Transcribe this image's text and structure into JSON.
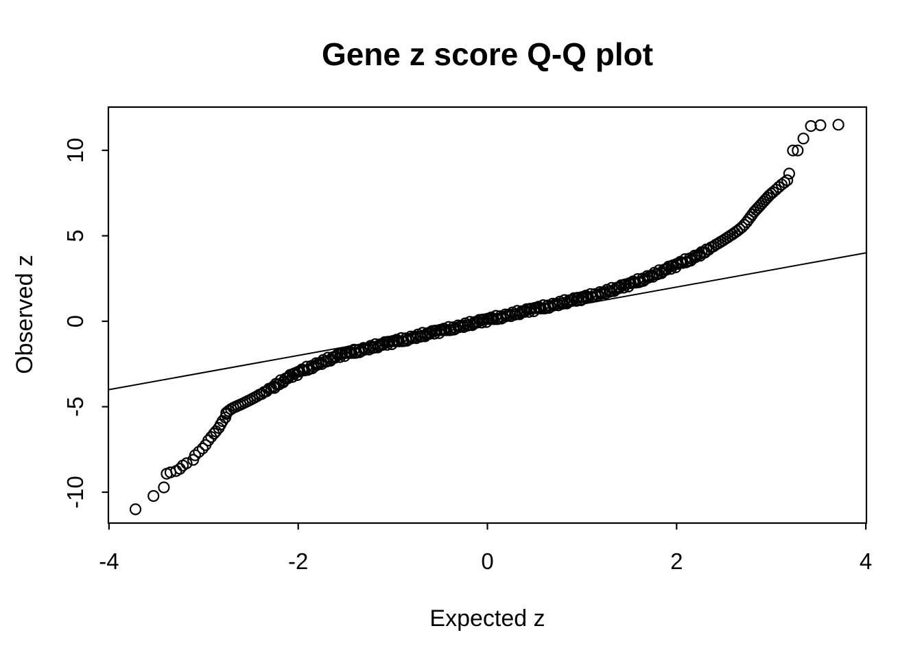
{
  "chart_data": {
    "type": "scatter",
    "subtype": "qq-plot",
    "title": "Gene z score Q-Q plot",
    "xlabel": "Expected z",
    "ylabel": "Observed z",
    "xlim": [
      -4,
      4
    ],
    "ylim": [
      -11.8,
      12.5
    ],
    "grid": false,
    "legend": "none",
    "x_ticks": [
      -4,
      -2,
      0,
      2,
      4
    ],
    "x_tick_labels": [
      "-4",
      "-2",
      "0",
      "2",
      "4"
    ],
    "y_ticks": [
      -10,
      -5,
      0,
      5,
      10
    ],
    "y_tick_labels": [
      "-10",
      "-5",
      "0",
      "5",
      "10"
    ],
    "reference_line": {
      "intercept": 0,
      "slope": 1
    },
    "marker": {
      "shape": "open-circle",
      "radius_px": 7.5,
      "stroke_px": 2.2
    },
    "colors": {
      "foreground": "#000000",
      "background": "#ffffff"
    },
    "left_tail_points": [
      [
        -3.72,
        -11.0
      ],
      [
        -3.53,
        -10.22
      ],
      [
        -3.42,
        -9.72
      ],
      [
        -3.39,
        -8.92
      ],
      [
        -3.35,
        -8.84
      ],
      [
        -3.29,
        -8.76
      ],
      [
        -3.25,
        -8.63
      ],
      [
        -3.22,
        -8.44
      ],
      [
        -3.18,
        -8.31
      ],
      [
        -3.11,
        -8.11
      ],
      [
        -3.09,
        -7.84
      ],
      [
        -3.05,
        -7.64
      ],
      [
        -3.01,
        -7.44
      ],
      [
        -2.98,
        -7.24
      ],
      [
        -2.95,
        -6.97
      ],
      [
        -2.92,
        -6.77
      ],
      [
        -2.89,
        -6.57
      ],
      [
        -2.87,
        -6.44
      ],
      [
        -2.84,
        -6.24
      ],
      [
        -2.82,
        -6.04
      ],
      [
        -2.8,
        -5.84
      ],
      [
        -2.77,
        -5.63
      ],
      [
        -2.76,
        -5.43
      ]
    ],
    "right_tail_points": [
      [
        2.76,
        5.95
      ],
      [
        2.78,
        6.1
      ],
      [
        2.8,
        6.25
      ],
      [
        2.82,
        6.4
      ],
      [
        2.84,
        6.52
      ],
      [
        2.86,
        6.64
      ],
      [
        2.88,
        6.76
      ],
      [
        2.9,
        6.88
      ],
      [
        2.92,
        7.0
      ],
      [
        2.94,
        7.12
      ],
      [
        2.96,
        7.24
      ],
      [
        2.98,
        7.36
      ],
      [
        3.0,
        7.46
      ],
      [
        3.02,
        7.56
      ],
      [
        3.05,
        7.7
      ],
      [
        3.08,
        7.85
      ],
      [
        3.11,
        8.0
      ],
      [
        3.14,
        8.12
      ],
      [
        3.17,
        8.25
      ],
      [
        3.19,
        8.64
      ],
      [
        3.23,
        9.99
      ],
      [
        3.28,
        9.99
      ],
      [
        3.34,
        10.69
      ],
      [
        3.42,
        11.42
      ],
      [
        3.52,
        11.47
      ],
      [
        3.71,
        11.5
      ]
    ],
    "band_knots": [
      [
        -2.76,
        -5.35
      ],
      [
        -2.7,
        -5.1
      ],
      [
        -2.6,
        -4.85
      ],
      [
        -2.5,
        -4.58
      ],
      [
        -2.4,
        -4.28
      ],
      [
        -2.3,
        -3.95
      ],
      [
        -2.2,
        -3.6
      ],
      [
        -2.1,
        -3.28
      ],
      [
        -2.0,
        -3.0
      ],
      [
        -1.9,
        -2.74
      ],
      [
        -1.8,
        -2.5
      ],
      [
        -1.7,
        -2.28
      ],
      [
        -1.6,
        -2.08
      ],
      [
        -1.5,
        -1.9
      ],
      [
        -1.4,
        -1.76
      ],
      [
        -1.3,
        -1.62
      ],
      [
        -1.2,
        -1.48
      ],
      [
        -1.1,
        -1.34
      ],
      [
        -1.0,
        -1.21
      ],
      [
        -0.9,
        -1.08
      ],
      [
        -0.8,
        -0.95
      ],
      [
        -0.7,
        -0.82
      ],
      [
        -0.6,
        -0.69
      ],
      [
        -0.5,
        -0.56
      ],
      [
        -0.4,
        -0.43
      ],
      [
        -0.3,
        -0.3
      ],
      [
        -0.2,
        -0.17
      ],
      [
        -0.1,
        -0.04
      ],
      [
        0.0,
        0.09
      ],
      [
        0.1,
        0.22
      ],
      [
        0.2,
        0.34
      ],
      [
        0.3,
        0.47
      ],
      [
        0.4,
        0.59
      ],
      [
        0.5,
        0.72
      ],
      [
        0.6,
        0.84
      ],
      [
        0.7,
        0.97
      ],
      [
        0.8,
        1.1
      ],
      [
        0.9,
        1.23
      ],
      [
        1.0,
        1.36
      ],
      [
        1.1,
        1.5
      ],
      [
        1.2,
        1.65
      ],
      [
        1.3,
        1.81
      ],
      [
        1.4,
        1.98
      ],
      [
        1.5,
        2.17
      ],
      [
        1.6,
        2.38
      ],
      [
        1.7,
        2.6
      ],
      [
        1.8,
        2.83
      ],
      [
        1.9,
        3.06
      ],
      [
        2.0,
        3.3
      ],
      [
        2.1,
        3.55
      ],
      [
        2.2,
        3.81
      ],
      [
        2.3,
        4.1
      ],
      [
        2.4,
        4.42
      ],
      [
        2.5,
        4.76
      ],
      [
        2.6,
        5.12
      ],
      [
        2.65,
        5.32
      ],
      [
        2.7,
        5.55
      ],
      [
        2.74,
        5.8
      ]
    ],
    "band_range": [
      -2.76,
      2.74
    ],
    "band_step": 0.025,
    "jitter_pattern": [
      0,
      0.09,
      -0.07,
      0.12,
      -0.11,
      0.04,
      -0.03,
      0.1,
      -0.09,
      0.06,
      -0.12,
      0.02,
      0.08,
      -0.05,
      0.11,
      -0.1,
      0.03,
      -0.08,
      0.07,
      -0.02
    ]
  }
}
